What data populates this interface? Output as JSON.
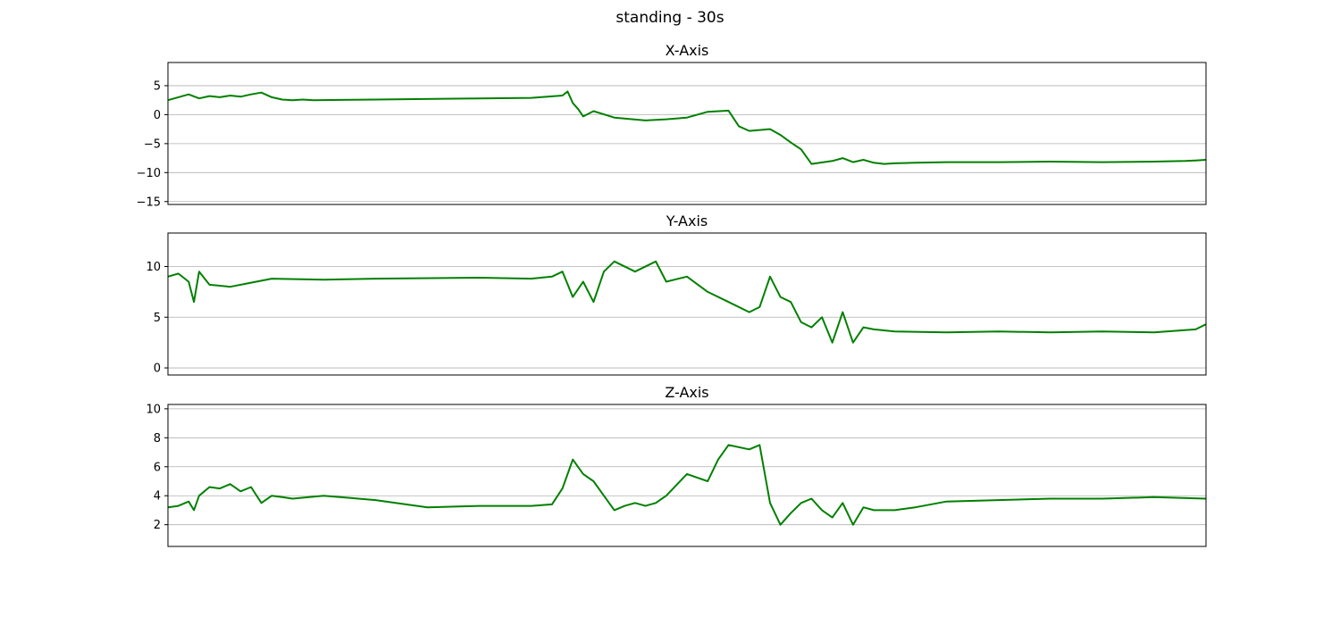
{
  "figure": {
    "suptitle": "standing - 30s"
  },
  "chart_data": [
    {
      "type": "line",
      "title": "X-Axis",
      "xlabel": "",
      "ylabel": "",
      "ylim": [
        -15.5,
        9
      ],
      "yticks": [
        5,
        0,
        -5,
        -10,
        -15
      ],
      "ytick_labels": [
        "5",
        "0",
        "−5",
        "−10",
        "−15"
      ],
      "grid": "y",
      "legend": "none",
      "color": "#008000",
      "series": [
        {
          "x": [
            0,
            0.01,
            0.02,
            0.03,
            0.04,
            0.05,
            0.06,
            0.07,
            0.08,
            0.09,
            0.1,
            0.11,
            0.12,
            0.13,
            0.14,
            0.2,
            0.3,
            0.35,
            0.38,
            0.385,
            0.39,
            0.395,
            0.4,
            0.41,
            0.43,
            0.46,
            0.48,
            0.5,
            0.52,
            0.54,
            0.55,
            0.56,
            0.58,
            0.59,
            0.6,
            0.61,
            0.62,
            0.64,
            0.65,
            0.66,
            0.67,
            0.68,
            0.69,
            0.7,
            0.72,
            0.75,
            0.8,
            0.85,
            0.9,
            0.95,
            0.98,
            0.99,
            1.0
          ],
          "values": [
            2.5,
            3.0,
            3.5,
            2.8,
            3.2,
            3.0,
            3.3,
            3.1,
            3.5,
            3.8,
            3.0,
            2.6,
            2.5,
            2.6,
            2.5,
            2.6,
            2.8,
            2.9,
            3.3,
            4.0,
            2.0,
            1.0,
            -0.3,
            0.6,
            -0.5,
            -1.0,
            -0.8,
            -0.5,
            0.5,
            0.7,
            -2.0,
            -2.8,
            -2.5,
            -3.5,
            -4.8,
            -6.0,
            -8.5,
            -8.0,
            -7.5,
            -8.2,
            -7.8,
            -8.3,
            -8.5,
            -8.4,
            -8.3,
            -8.2,
            -8.2,
            -8.1,
            -8.2,
            -8.1,
            -8.0,
            -7.9,
            -7.8
          ]
        }
      ]
    },
    {
      "type": "line",
      "title": "Y-Axis",
      "xlabel": "",
      "ylabel": "",
      "ylim": [
        -0.7,
        13.3
      ],
      "yticks": [
        10,
        5,
        0
      ],
      "ytick_labels": [
        "10",
        "5",
        "0"
      ],
      "grid": "y",
      "legend": "none",
      "color": "#008000",
      "series": [
        {
          "x": [
            0,
            0.01,
            0.02,
            0.025,
            0.03,
            0.04,
            0.06,
            0.08,
            0.1,
            0.15,
            0.2,
            0.3,
            0.35,
            0.37,
            0.38,
            0.39,
            0.4,
            0.41,
            0.42,
            0.43,
            0.45,
            0.47,
            0.48,
            0.5,
            0.52,
            0.54,
            0.56,
            0.57,
            0.58,
            0.59,
            0.6,
            0.61,
            0.62,
            0.63,
            0.64,
            0.65,
            0.66,
            0.67,
            0.68,
            0.7,
            0.75,
            0.8,
            0.85,
            0.9,
            0.95,
            0.99,
            1.0
          ],
          "values": [
            9.0,
            9.3,
            8.5,
            6.5,
            9.5,
            8.2,
            8.0,
            8.4,
            8.8,
            8.7,
            8.8,
            8.9,
            8.8,
            9.0,
            9.5,
            7.0,
            8.5,
            6.5,
            9.5,
            10.5,
            9.5,
            10.5,
            8.5,
            9.0,
            7.5,
            6.5,
            5.5,
            6.0,
            9.0,
            7.0,
            6.5,
            4.5,
            4.0,
            5.0,
            2.5,
            5.5,
            2.5,
            4.0,
            3.8,
            3.6,
            3.5,
            3.6,
            3.5,
            3.6,
            3.5,
            3.8,
            4.3
          ]
        }
      ]
    },
    {
      "type": "line",
      "title": "Z-Axis",
      "xlabel": "",
      "ylabel": "",
      "ylim": [
        0.5,
        10.3
      ],
      "yticks": [
        10,
        8,
        6,
        4,
        2
      ],
      "ytick_labels": [
        "10",
        "8",
        "6",
        "4",
        "2"
      ],
      "grid": "y",
      "legend": "none",
      "color": "#008000",
      "series": [
        {
          "x": [
            0,
            0.01,
            0.02,
            0.025,
            0.03,
            0.04,
            0.05,
            0.06,
            0.07,
            0.08,
            0.09,
            0.1,
            0.11,
            0.12,
            0.15,
            0.2,
            0.25,
            0.3,
            0.35,
            0.37,
            0.38,
            0.39,
            0.4,
            0.41,
            0.42,
            0.43,
            0.44,
            0.45,
            0.46,
            0.47,
            0.48,
            0.5,
            0.52,
            0.53,
            0.54,
            0.56,
            0.57,
            0.58,
            0.59,
            0.6,
            0.61,
            0.62,
            0.63,
            0.64,
            0.65,
            0.66,
            0.67,
            0.68,
            0.7,
            0.72,
            0.75,
            0.8,
            0.85,
            0.9,
            0.95,
            1.0
          ],
          "values": [
            3.2,
            3.3,
            3.6,
            3.0,
            4.0,
            4.6,
            4.5,
            4.8,
            4.3,
            4.6,
            3.5,
            4.0,
            3.9,
            3.8,
            4.0,
            3.7,
            3.2,
            3.3,
            3.3,
            3.4,
            4.5,
            6.5,
            5.5,
            5.0,
            4.0,
            3.0,
            3.3,
            3.5,
            3.3,
            3.5,
            4.0,
            5.5,
            5.0,
            6.5,
            7.5,
            7.2,
            7.5,
            3.5,
            2.0,
            2.8,
            3.5,
            3.8,
            3.0,
            2.5,
            3.5,
            2.0,
            3.2,
            3.0,
            3.0,
            3.2,
            3.6,
            3.7,
            3.8,
            3.8,
            3.9,
            3.8
          ]
        }
      ]
    }
  ]
}
